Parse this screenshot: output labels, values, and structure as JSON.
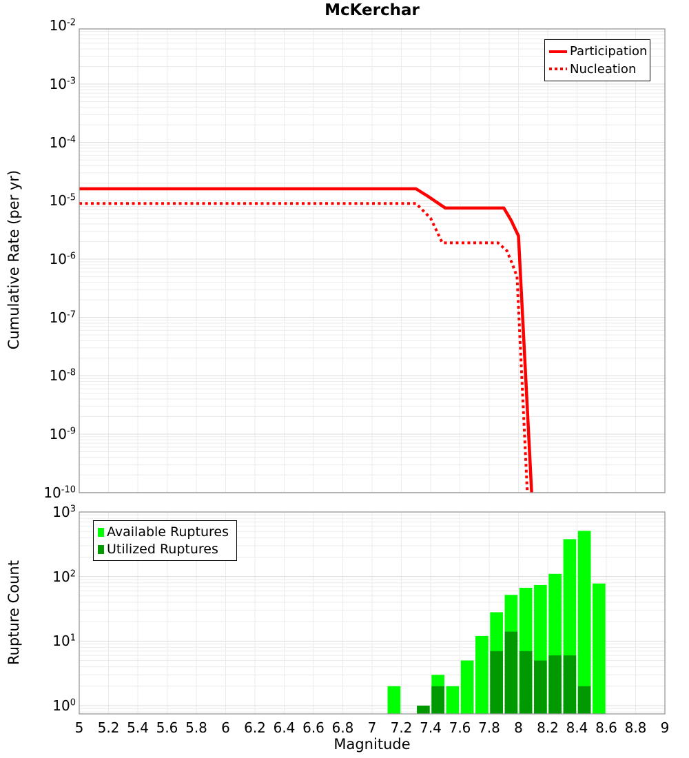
{
  "title": "McKerchar",
  "x_axis": {
    "label": "Magnitude",
    "tick_labels": [
      "5",
      "5.2",
      "5.4",
      "5.6",
      "5.8",
      "6",
      "6.2",
      "6.4",
      "6.6",
      "6.8",
      "7",
      "7.2",
      "7.4",
      "7.6",
      "7.8",
      "8",
      "8.2",
      "8.4",
      "8.6",
      "8.8",
      "9"
    ]
  },
  "top_panel": {
    "ylabel": "Cumulative Rate (per yr)",
    "y_tick_exponents": [
      "-2",
      "-3",
      "-4",
      "-5",
      "-6",
      "-7",
      "-8",
      "-9",
      "-10"
    ],
    "legend": [
      "Participation",
      "Nucleation"
    ]
  },
  "bottom_panel": {
    "ylabel": "Rupture Count",
    "y_tick_exponents": [
      "0",
      "1",
      "2",
      "3"
    ],
    "legend": [
      "Available Ruptures",
      "Utilized Ruptures"
    ]
  },
  "colors": {
    "line": "#ff0000",
    "available": "#00ff00",
    "utilized": "#009a00",
    "grid_minor": "#ebebeb",
    "grid_major": "#dcdcdc",
    "panel_border": "#969696"
  },
  "chart_data": [
    {
      "type": "line",
      "title": "McKerchar",
      "xlabel": "Magnitude",
      "ylabel": "Cumulative Rate (per yr)",
      "xlim": [
        5,
        9
      ],
      "ylim": [
        1e-10,
        0.01
      ],
      "yscale": "log",
      "grid": true,
      "legend_position": "top-right",
      "series": [
        {
          "name": "Participation",
          "style": "solid",
          "color": "#ff0000",
          "points": [
            [
              5.0,
              1.6e-05
            ],
            [
              7.3,
              1.6e-05
            ],
            [
              7.38,
              1.2e-05
            ],
            [
              7.5,
              7.5e-06
            ],
            [
              7.9,
              7.5e-06
            ],
            [
              7.95,
              4.6e-06
            ],
            [
              8.0,
              2.5e-06
            ],
            [
              8.09,
              1e-10
            ]
          ]
        },
        {
          "name": "Nucleation",
          "style": "dotted",
          "color": "#ff0000",
          "points": [
            [
              5.0,
              9e-06
            ],
            [
              7.3,
              9e-06
            ],
            [
              7.4,
              5e-06
            ],
            [
              7.48,
              1.9e-06
            ],
            [
              7.86,
              1.9e-06
            ],
            [
              7.92,
              1.4e-06
            ],
            [
              7.96,
              8e-07
            ],
            [
              7.99,
              5e-07
            ],
            [
              8.06,
              1e-10
            ]
          ]
        }
      ]
    },
    {
      "type": "bar",
      "xlabel": "Magnitude",
      "ylabel": "Rupture Count",
      "xlim": [
        5,
        9
      ],
      "ylim": [
        1,
        1000
      ],
      "yscale": "log",
      "bin_width": 0.1,
      "grid": true,
      "legend_position": "top-left",
      "series": [
        {
          "name": "Available Ruptures",
          "color": "#00ff00",
          "bins": [
            {
              "mag": 7.1,
              "count": 2
            },
            {
              "mag": 7.4,
              "count": 3
            },
            {
              "mag": 7.5,
              "count": 2
            },
            {
              "mag": 7.6,
              "count": 5
            },
            {
              "mag": 7.7,
              "count": 12
            },
            {
              "mag": 7.8,
              "count": 28
            },
            {
              "mag": 7.9,
              "count": 52
            },
            {
              "mag": 8.0,
              "count": 67
            },
            {
              "mag": 8.1,
              "count": 74
            },
            {
              "mag": 8.2,
              "count": 110
            },
            {
              "mag": 8.3,
              "count": 380
            },
            {
              "mag": 8.4,
              "count": 510
            },
            {
              "mag": 8.5,
              "count": 78
            }
          ]
        },
        {
          "name": "Utilized Ruptures",
          "color": "#009a00",
          "bins": [
            {
              "mag": 7.3,
              "count": 1
            },
            {
              "mag": 7.4,
              "count": 2
            },
            {
              "mag": 7.8,
              "count": 7
            },
            {
              "mag": 7.9,
              "count": 14
            },
            {
              "mag": 8.0,
              "count": 7
            },
            {
              "mag": 8.1,
              "count": 5
            },
            {
              "mag": 8.2,
              "count": 6
            },
            {
              "mag": 8.3,
              "count": 6
            },
            {
              "mag": 8.4,
              "count": 2
            }
          ]
        }
      ]
    }
  ]
}
